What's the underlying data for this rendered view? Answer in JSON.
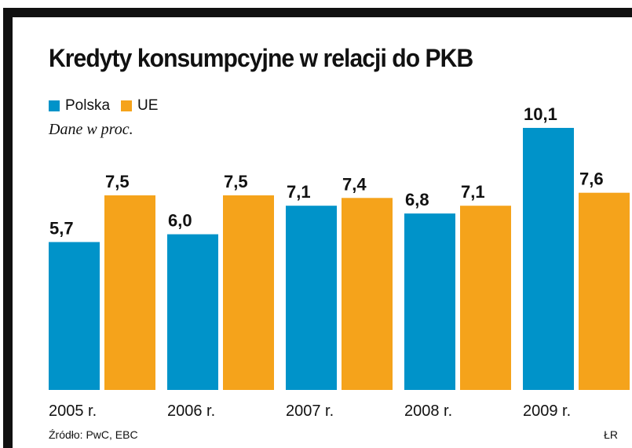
{
  "title": "Kredyty konsumpcyjne w relacji do PKB",
  "subtitle": "Dane w proc.",
  "source": "Źródło: PwC, EBC",
  "credit": "ŁR",
  "colors": {
    "polska": "#0093c9",
    "ue": "#f5a31b",
    "frame": "#111111",
    "text": "#111111"
  },
  "chart_data": {
    "type": "bar",
    "title": "Kredyty konsumpcyjne w relacji do PKB",
    "subtitle": "Dane w proc.",
    "categories": [
      "2005 r.",
      "2006 r.",
      "2007 r.",
      "2008 r.",
      "2009 r."
    ],
    "series": [
      {
        "name": "Polska",
        "color": "#0093c9",
        "values": [
          5.7,
          6.0,
          7.1,
          6.8,
          10.1
        ],
        "labels": [
          "5,7",
          "6,0",
          "7,1",
          "6,8",
          "10,1"
        ]
      },
      {
        "name": "UE",
        "color": "#f5a31b",
        "values": [
          7.5,
          7.5,
          7.4,
          7.1,
          7.6
        ],
        "labels": [
          "7,5",
          "7,5",
          "7,4",
          "7,1",
          "7,6"
        ]
      }
    ],
    "xlabel": "",
    "ylabel": "",
    "ylim": [
      0,
      10.1
    ],
    "grid": false,
    "legend": "top-left"
  }
}
